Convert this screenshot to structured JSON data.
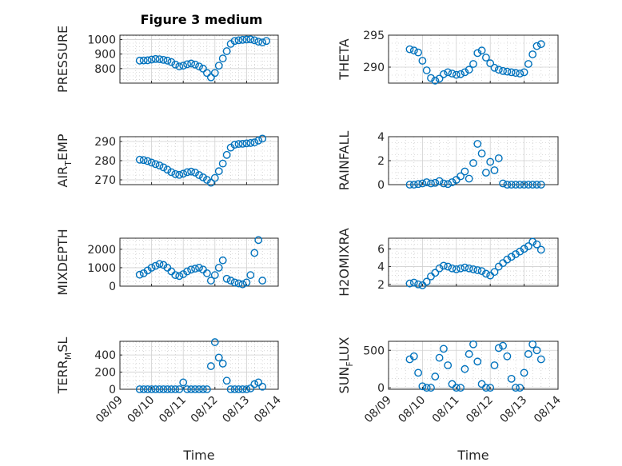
{
  "title": "Figure 3 medium",
  "chart_data": [
    {
      "type": "scatter",
      "ylabel": "PRESSURE",
      "ylim": [
        700,
        1030
      ],
      "yticks": [
        800,
        900,
        1000
      ],
      "xlim": [
        "08/09",
        "08/14"
      ],
      "x_ticks_shown": false,
      "points": [
        [
          "08/09 15:00",
          855
        ],
        [
          "08/09 18:00",
          856
        ],
        [
          "08/09 21:00",
          857
        ],
        [
          "08/10 00:00",
          862
        ],
        [
          "08/10 03:00",
          866
        ],
        [
          "08/10 06:00",
          864
        ],
        [
          "08/10 09:00",
          860
        ],
        [
          "08/10 12:00",
          855
        ],
        [
          "08/10 15:00",
          845
        ],
        [
          "08/10 18:00",
          828
        ],
        [
          "08/10 21:00",
          815
        ],
        [
          "08/11 00:00",
          820
        ],
        [
          "08/11 03:00",
          830
        ],
        [
          "08/11 06:00",
          835
        ],
        [
          "08/11 09:00",
          828
        ],
        [
          "08/11 12:00",
          815
        ],
        [
          "08/11 15:00",
          800
        ],
        [
          "08/11 18:00",
          770
        ],
        [
          "08/11 21:00",
          740
        ],
        [
          "08/12 00:00",
          770
        ],
        [
          "08/12 03:00",
          820
        ],
        [
          "08/12 06:00",
          870
        ],
        [
          "08/12 09:00",
          920
        ],
        [
          "08/12 12:00",
          970
        ],
        [
          "08/12 15:00",
          990
        ],
        [
          "08/12 18:00",
          995
        ],
        [
          "08/12 21:00",
          998
        ],
        [
          "08/13 00:00",
          1000
        ],
        [
          "08/13 03:00",
          1001
        ],
        [
          "08/13 06:00",
          995
        ],
        [
          "08/13 09:00",
          985
        ],
        [
          "08/13 12:00",
          980
        ],
        [
          "08/13 15:00",
          990
        ]
      ]
    },
    {
      "type": "scatter",
      "ylabel": "THETA",
      "ylim": [
        287.5,
        295
      ],
      "yticks": [
        290,
        295
      ],
      "xlim": [
        "08/09",
        "08/14"
      ],
      "x_ticks_shown": false,
      "points": [
        [
          "08/09 15:00",
          292.8
        ],
        [
          "08/09 18:00",
          292.6
        ],
        [
          "08/09 21:00",
          292.3
        ],
        [
          "08/10 00:00",
          291.0
        ],
        [
          "08/10 03:00",
          289.5
        ],
        [
          "08/10 06:00",
          288.3
        ],
        [
          "08/10 09:00",
          287.9
        ],
        [
          "08/10 12:00",
          288.2
        ],
        [
          "08/10 15:00",
          288.9
        ],
        [
          "08/10 18:00",
          289.2
        ],
        [
          "08/10 21:00",
          289.0
        ],
        [
          "08/11 00:00",
          288.8
        ],
        [
          "08/11 03:00",
          288.9
        ],
        [
          "08/11 06:00",
          289.2
        ],
        [
          "08/11 09:00",
          289.6
        ],
        [
          "08/11 12:00",
          290.5
        ],
        [
          "08/11 15:00",
          292.2
        ],
        [
          "08/11 18:00",
          292.6
        ],
        [
          "08/11 21:00",
          291.5
        ],
        [
          "08/12 00:00",
          290.6
        ],
        [
          "08/12 03:00",
          289.9
        ],
        [
          "08/12 06:00",
          289.6
        ],
        [
          "08/12 09:00",
          289.4
        ],
        [
          "08/12 12:00",
          289.3
        ],
        [
          "08/12 15:00",
          289.2
        ],
        [
          "08/12 18:00",
          289.1
        ],
        [
          "08/12 21:00",
          289.0
        ],
        [
          "08/13 00:00",
          289.2
        ],
        [
          "08/13 03:00",
          290.5
        ],
        [
          "08/13 06:00",
          292.0
        ],
        [
          "08/13 09:00",
          293.3
        ],
        [
          "08/13 12:00",
          293.6
        ]
      ]
    },
    {
      "type": "scatter",
      "ylabel": "AIR_TEMP",
      "ylim": [
        267.5,
        292.5
      ],
      "yticks": [
        270,
        280,
        290
      ],
      "xlim": [
        "08/09",
        "08/14"
      ],
      "x_ticks_shown": false,
      "points": [
        [
          "08/09 15:00",
          280.5
        ],
        [
          "08/09 18:00",
          280.3
        ],
        [
          "08/09 21:00",
          279.8
        ],
        [
          "08/10 00:00",
          279.0
        ],
        [
          "08/10 03:00",
          278.2
        ],
        [
          "08/10 06:00",
          277.5
        ],
        [
          "08/10 09:00",
          276.5
        ],
        [
          "08/10 12:00",
          275.3
        ],
        [
          "08/10 15:00",
          274.0
        ],
        [
          "08/10 18:00",
          273.0
        ],
        [
          "08/10 21:00",
          272.6
        ],
        [
          "08/11 00:00",
          273.2
        ],
        [
          "08/11 03:00",
          274.0
        ],
        [
          "08/11 06:00",
          274.3
        ],
        [
          "08/11 09:00",
          273.8
        ],
        [
          "08/11 12:00",
          272.5
        ],
        [
          "08/11 15:00",
          271.3
        ],
        [
          "08/11 18:00",
          270.0
        ],
        [
          "08/11 21:00",
          268.5
        ],
        [
          "08/12 00:00",
          271.0
        ],
        [
          "08/12 03:00",
          274.5
        ],
        [
          "08/12 06:00",
          278.5
        ],
        [
          "08/12 09:00",
          283.0
        ],
        [
          "08/12 12:00",
          286.8
        ],
        [
          "08/12 15:00",
          288.3
        ],
        [
          "08/12 18:00",
          288.7
        ],
        [
          "08/12 21:00",
          288.8
        ],
        [
          "08/13 00:00",
          289.0
        ],
        [
          "08/13 03:00",
          289.2
        ],
        [
          "08/13 06:00",
          289.5
        ],
        [
          "08/13 09:00",
          290.5
        ],
        [
          "08/13 12:00",
          291.5
        ]
      ]
    },
    {
      "type": "scatter",
      "ylabel": "RAINFALL",
      "ylim": [
        0,
        4
      ],
      "yticks": [
        0,
        2,
        4
      ],
      "xlim": [
        "08/09",
        "08/14"
      ],
      "x_ticks_shown": false,
      "points": [
        [
          "08/09 15:00",
          0
        ],
        [
          "08/09 18:00",
          0
        ],
        [
          "08/09 21:00",
          0.05
        ],
        [
          "08/10 00:00",
          0.1
        ],
        [
          "08/10 03:00",
          0.2
        ],
        [
          "08/10 06:00",
          0.1
        ],
        [
          "08/10 09:00",
          0.15
        ],
        [
          "08/10 12:00",
          0.3
        ],
        [
          "08/10 15:00",
          0.1
        ],
        [
          "08/10 18:00",
          0.05
        ],
        [
          "08/10 21:00",
          0.2
        ],
        [
          "08/11 00:00",
          0.4
        ],
        [
          "08/11 03:00",
          0.7
        ],
        [
          "08/11 06:00",
          1.1
        ],
        [
          "08/11 09:00",
          0.5
        ],
        [
          "08/11 12:00",
          1.8
        ],
        [
          "08/11 15:00",
          3.4
        ],
        [
          "08/11 18:00",
          2.6
        ],
        [
          "08/11 21:00",
          1.0
        ],
        [
          "08/12 00:00",
          1.9
        ],
        [
          "08/12 03:00",
          1.2
        ],
        [
          "08/12 06:00",
          2.2
        ],
        [
          "08/12 09:00",
          0.1
        ],
        [
          "08/12 12:00",
          0
        ],
        [
          "08/12 15:00",
          0
        ],
        [
          "08/12 18:00",
          0
        ],
        [
          "08/12 21:00",
          0
        ],
        [
          "08/13 00:00",
          0
        ],
        [
          "08/13 03:00",
          0
        ],
        [
          "08/13 06:00",
          0
        ],
        [
          "08/13 09:00",
          0
        ],
        [
          "08/13 12:00",
          0
        ]
      ]
    },
    {
      "type": "scatter",
      "ylabel": "MIXDEPTH",
      "ylim": [
        0,
        2600
      ],
      "yticks": [
        0,
        1000,
        2000
      ],
      "xlim": [
        "08/09",
        "08/14"
      ],
      "x_ticks_shown": false,
      "points": [
        [
          "08/09 15:00",
          620
        ],
        [
          "08/09 18:00",
          700
        ],
        [
          "08/09 21:00",
          850
        ],
        [
          "08/10 00:00",
          1000
        ],
        [
          "08/10 03:00",
          1100
        ],
        [
          "08/10 06:00",
          1200
        ],
        [
          "08/10 09:00",
          1150
        ],
        [
          "08/10 12:00",
          1000
        ],
        [
          "08/10 15:00",
          800
        ],
        [
          "08/10 18:00",
          600
        ],
        [
          "08/10 21:00",
          550
        ],
        [
          "08/11 00:00",
          650
        ],
        [
          "08/11 03:00",
          800
        ],
        [
          "08/11 06:00",
          900
        ],
        [
          "08/11 09:00",
          950
        ],
        [
          "08/11 12:00",
          1000
        ],
        [
          "08/11 15:00",
          900
        ],
        [
          "08/11 18:00",
          700
        ],
        [
          "08/11 21:00",
          300
        ],
        [
          "08/12 00:00",
          600
        ],
        [
          "08/12 03:00",
          1000
        ],
        [
          "08/12 06:00",
          1400
        ],
        [
          "08/12 09:00",
          400
        ],
        [
          "08/12 12:00",
          300
        ],
        [
          "08/12 15:00",
          200
        ],
        [
          "08/12 18:00",
          150
        ],
        [
          "08/12 21:00",
          100
        ],
        [
          "08/13 00:00",
          200
        ],
        [
          "08/13 03:00",
          600
        ],
        [
          "08/13 06:00",
          1800
        ],
        [
          "08/13 09:00",
          2500
        ],
        [
          "08/13 12:00",
          300
        ]
      ]
    },
    {
      "type": "scatter",
      "ylabel": "H2OMIXRA",
      "ylim": [
        1.8,
        7.2
      ],
      "yticks": [
        2,
        4,
        6
      ],
      "xlim": [
        "08/09",
        "08/14"
      ],
      "x_ticks_shown": false,
      "points": [
        [
          "08/09 15:00",
          2.1
        ],
        [
          "08/09 18:00",
          2.2
        ],
        [
          "08/09 21:00",
          2.0
        ],
        [
          "08/10 00:00",
          1.9
        ],
        [
          "08/10 03:00",
          2.3
        ],
        [
          "08/10 06:00",
          2.9
        ],
        [
          "08/10 09:00",
          3.3
        ],
        [
          "08/10 12:00",
          3.8
        ],
        [
          "08/10 15:00",
          4.1
        ],
        [
          "08/10 18:00",
          4.0
        ],
        [
          "08/10 21:00",
          3.8
        ],
        [
          "08/11 00:00",
          3.7
        ],
        [
          "08/11 03:00",
          3.8
        ],
        [
          "08/11 06:00",
          3.9
        ],
        [
          "08/11 09:00",
          3.8
        ],
        [
          "08/11 12:00",
          3.7
        ],
        [
          "08/11 15:00",
          3.6
        ],
        [
          "08/11 18:00",
          3.5
        ],
        [
          "08/11 21:00",
          3.2
        ],
        [
          "08/12 00:00",
          3.0
        ],
        [
          "08/12 03:00",
          3.4
        ],
        [
          "08/12 06:00",
          4.0
        ],
        [
          "08/12 09:00",
          4.4
        ],
        [
          "08/12 12:00",
          4.8
        ],
        [
          "08/12 15:00",
          5.1
        ],
        [
          "08/12 18:00",
          5.4
        ],
        [
          "08/12 21:00",
          5.7
        ],
        [
          "08/13 00:00",
          6.0
        ],
        [
          "08/13 03:00",
          6.3
        ],
        [
          "08/13 06:00",
          6.8
        ],
        [
          "08/13 09:00",
          6.5
        ],
        [
          "08/13 12:00",
          5.9
        ]
      ]
    },
    {
      "type": "scatter",
      "ylabel": "TERR_MSL",
      "ylim": [
        0,
        560
      ],
      "yticks": [
        0,
        200,
        400
      ],
      "xlim": [
        "08/09",
        "08/14"
      ],
      "xticks": [
        "08/09",
        "08/10",
        "08/11",
        "08/12",
        "08/13",
        "08/14"
      ],
      "xlabel": "Time",
      "points": [
        [
          "08/09 15:00",
          0
        ],
        [
          "08/09 18:00",
          0
        ],
        [
          "08/09 21:00",
          0
        ],
        [
          "08/10 00:00",
          0
        ],
        [
          "08/10 03:00",
          0
        ],
        [
          "08/10 06:00",
          0
        ],
        [
          "08/10 09:00",
          0
        ],
        [
          "08/10 12:00",
          0
        ],
        [
          "08/10 15:00",
          0
        ],
        [
          "08/10 18:00",
          0
        ],
        [
          "08/10 21:00",
          0
        ],
        [
          "08/11 00:00",
          80
        ],
        [
          "08/11 03:00",
          0
        ],
        [
          "08/11 06:00",
          0
        ],
        [
          "08/11 09:00",
          0
        ],
        [
          "08/11 12:00",
          0
        ],
        [
          "08/11 15:00",
          0
        ],
        [
          "08/11 18:00",
          0
        ],
        [
          "08/11 21:00",
          270
        ],
        [
          "08/12 00:00",
          550
        ],
        [
          "08/12 03:00",
          370
        ],
        [
          "08/12 06:00",
          300
        ],
        [
          "08/12 09:00",
          100
        ],
        [
          "08/12 12:00",
          0
        ],
        [
          "08/12 15:00",
          0
        ],
        [
          "08/12 18:00",
          0
        ],
        [
          "08/12 21:00",
          0
        ],
        [
          "08/13 00:00",
          0
        ],
        [
          "08/13 03:00",
          10
        ],
        [
          "08/13 06:00",
          60
        ],
        [
          "08/13 09:00",
          80
        ],
        [
          "08/13 12:00",
          30
        ]
      ]
    },
    {
      "type": "scatter",
      "ylabel": "SUN_FLUX",
      "ylim": [
        -20,
        620
      ],
      "yticks": [
        0,
        500
      ],
      "xlim": [
        "08/09",
        "08/14"
      ],
      "xticks": [
        "08/09",
        "08/10",
        "08/11",
        "08/12",
        "08/13",
        "08/14"
      ],
      "xlabel": "Time",
      "points": [
        [
          "08/09 15:00",
          380
        ],
        [
          "08/09 18:00",
          420
        ],
        [
          "08/09 21:00",
          200
        ],
        [
          "08/10 00:00",
          20
        ],
        [
          "08/10 03:00",
          0
        ],
        [
          "08/10 06:00",
          0
        ],
        [
          "08/10 09:00",
          150
        ],
        [
          "08/10 12:00",
          400
        ],
        [
          "08/10 15:00",
          520
        ],
        [
          "08/10 18:00",
          300
        ],
        [
          "08/10 21:00",
          50
        ],
        [
          "08/11 00:00",
          0
        ],
        [
          "08/11 03:00",
          0
        ],
        [
          "08/11 06:00",
          250
        ],
        [
          "08/11 09:00",
          450
        ],
        [
          "08/11 12:00",
          580
        ],
        [
          "08/11 15:00",
          350
        ],
        [
          "08/11 18:00",
          50
        ],
        [
          "08/11 21:00",
          0
        ],
        [
          "08/12 00:00",
          0
        ],
        [
          "08/12 03:00",
          300
        ],
        [
          "08/12 06:00",
          530
        ],
        [
          "08/12 09:00",
          560
        ],
        [
          "08/12 12:00",
          420
        ],
        [
          "08/12 15:00",
          120
        ],
        [
          "08/12 18:00",
          0
        ],
        [
          "08/12 21:00",
          0
        ],
        [
          "08/13 00:00",
          200
        ],
        [
          "08/13 03:00",
          450
        ],
        [
          "08/13 06:00",
          580
        ],
        [
          "08/13 09:00",
          500
        ],
        [
          "08/13 12:00",
          380
        ]
      ]
    }
  ],
  "colors": {
    "marker": "#0072bd",
    "axis": "#262626",
    "background": "#ffffff"
  }
}
